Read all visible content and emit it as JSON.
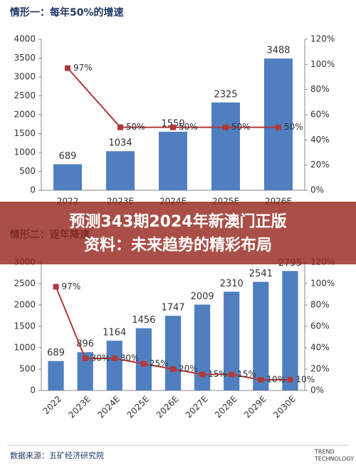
{
  "chart_data": [
    {
      "type": "bar",
      "title": "情形一：每年50%的增速",
      "categories": [
        "2022",
        "2023E",
        "2024E",
        "2025E",
        "2026E"
      ],
      "series": [
        {
          "color": "#4f7fc0",
          "values": [
            689,
            1034,
            1550,
            2325,
            3488
          ]
        },
        {
          "type": "line",
          "axis": "y2",
          "color": "#b03a3a",
          "values": [
            97,
            50,
            50,
            50,
            50
          ],
          "value_labels": [
            "97%",
            "50%",
            "50%",
            "50%",
            "50%"
          ]
        }
      ],
      "ylim": [
        0,
        4000
      ],
      "yticks": [
        0,
        500,
        1000,
        1500,
        2000,
        2500,
        3000,
        3500,
        4000
      ],
      "y2lim": [
        0,
        120
      ],
      "y2ticks": [
        {
          "value": 0,
          "label": "0%"
        },
        {
          "value": 20,
          "label": "20%"
        },
        {
          "value": 40,
          "label": "40%"
        },
        {
          "value": 60,
          "label": "60%"
        },
        {
          "value": 80,
          "label": "80%"
        },
        {
          "value": 100,
          "label": "100%"
        },
        {
          "value": 120,
          "label": "120%"
        }
      ],
      "grid": false
    },
    {
      "type": "bar",
      "title": "情形二：逐年降速",
      "categories": [
        "2022",
        "2023E",
        "2024E",
        "2025E",
        "2026E",
        "2027E",
        "2028E",
        "2029E",
        "2030E"
      ],
      "series": [
        {
          "color": "#4f7fc0",
          "values": [
            689,
            896,
            1164,
            1456,
            1747,
            2009,
            2310,
            2541,
            2795
          ]
        },
        {
          "type": "line",
          "axis": "y2",
          "color": "#b03a3a",
          "values": [
            97,
            30,
            30,
            25,
            20,
            15,
            15,
            10,
            10
          ],
          "value_labels": [
            "97%",
            "30%",
            "30%",
            "25%",
            "20%",
            "15%",
            "15%",
            "10%",
            "10%"
          ]
        }
      ],
      "ylim": [
        0,
        3000
      ],
      "yticks": [
        0,
        500,
        1000,
        1500,
        2000,
        2500,
        3000
      ],
      "y2lim": [
        0,
        120
      ],
      "y2ticks": [
        {
          "value": 0,
          "label": "0%"
        },
        {
          "value": 20,
          "label": "20%"
        },
        {
          "value": 40,
          "label": "40%"
        },
        {
          "value": 60,
          "label": "60%"
        },
        {
          "value": 80,
          "label": "80%"
        },
        {
          "value": 100,
          "label": "100%"
        },
        {
          "value": 120,
          "label": "120%"
        }
      ],
      "grid": false
    }
  ],
  "banner": {
    "line1": "预测343期2024年新澳门正版",
    "line2": "资料：未来趋势的精彩布局"
  },
  "footer": {
    "source": "数据来源：五矿经济研究院",
    "brand1": "TREND",
    "brand2": "TECHNOLOGY"
  }
}
